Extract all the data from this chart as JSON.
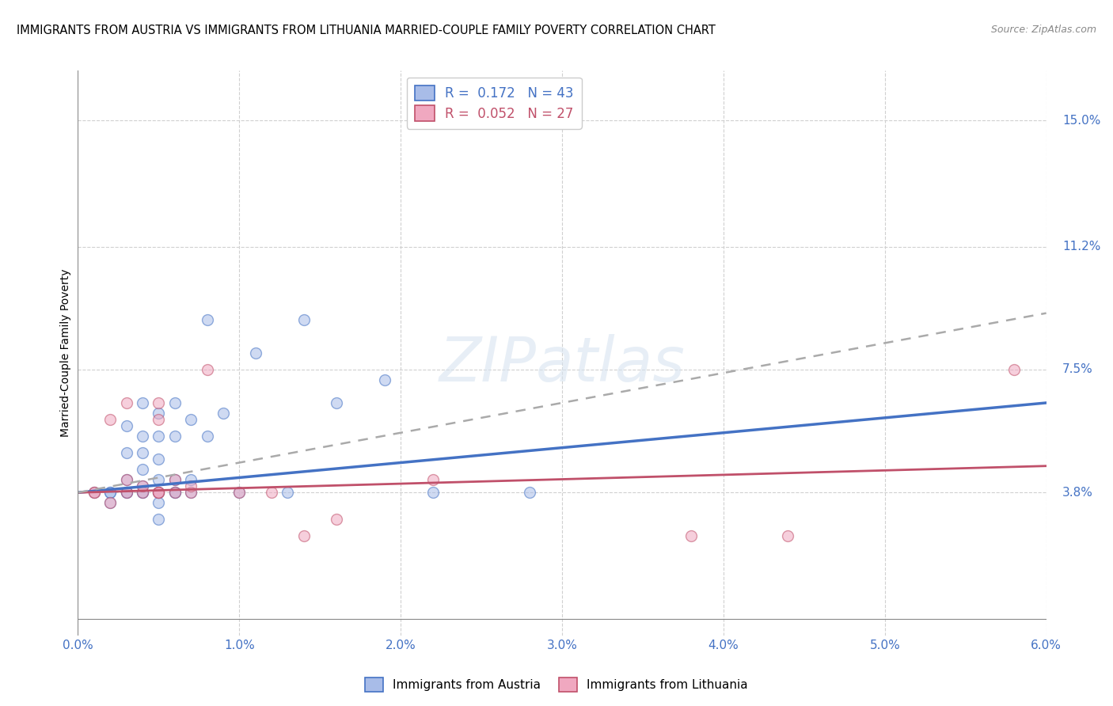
{
  "title": "IMMIGRANTS FROM AUSTRIA VS IMMIGRANTS FROM LITHUANIA MARRIED-COUPLE FAMILY POVERTY CORRELATION CHART",
  "source": "Source: ZipAtlas.com",
  "ylabel": "Married-Couple Family Poverty",
  "xlim": [
    0.0,
    0.06
  ],
  "ylim": [
    -0.005,
    0.165
  ],
  "xtick_labels": [
    "0.0%",
    "1.0%",
    "2.0%",
    "3.0%",
    "4.0%",
    "5.0%",
    "6.0%"
  ],
  "xtick_values": [
    0.0,
    0.01,
    0.02,
    0.03,
    0.04,
    0.05,
    0.06
  ],
  "ytick_labels": [
    "3.8%",
    "7.5%",
    "11.2%",
    "15.0%"
  ],
  "ytick_values": [
    0.038,
    0.075,
    0.112,
    0.15
  ],
  "gridline_color": "#d0d0d0",
  "austria_color": "#a8bce8",
  "austria_edge_color": "#4472c4",
  "lithuania_color": "#f0a8c0",
  "lithuania_edge_color": "#c0506a",
  "legend_austria_label": "R =  0.172   N = 43",
  "legend_lithuania_label": "R =  0.052   N = 27",
  "austria_scatter_x": [
    0.001,
    0.002,
    0.002,
    0.002,
    0.003,
    0.003,
    0.003,
    0.003,
    0.003,
    0.004,
    0.004,
    0.004,
    0.004,
    0.004,
    0.004,
    0.004,
    0.005,
    0.005,
    0.005,
    0.005,
    0.005,
    0.005,
    0.005,
    0.005,
    0.006,
    0.006,
    0.006,
    0.006,
    0.006,
    0.007,
    0.007,
    0.007,
    0.008,
    0.008,
    0.009,
    0.01,
    0.011,
    0.013,
    0.014,
    0.016,
    0.019,
    0.022,
    0.028
  ],
  "austria_scatter_y": [
    0.038,
    0.038,
    0.035,
    0.038,
    0.038,
    0.038,
    0.042,
    0.05,
    0.058,
    0.038,
    0.038,
    0.04,
    0.045,
    0.05,
    0.055,
    0.065,
    0.03,
    0.035,
    0.038,
    0.038,
    0.042,
    0.048,
    0.055,
    0.062,
    0.038,
    0.038,
    0.042,
    0.055,
    0.065,
    0.038,
    0.042,
    0.06,
    0.055,
    0.09,
    0.062,
    0.038,
    0.08,
    0.038,
    0.09,
    0.065,
    0.072,
    0.038,
    0.038
  ],
  "lithuania_scatter_x": [
    0.001,
    0.001,
    0.002,
    0.002,
    0.003,
    0.003,
    0.003,
    0.004,
    0.004,
    0.005,
    0.005,
    0.005,
    0.005,
    0.005,
    0.006,
    0.006,
    0.007,
    0.007,
    0.008,
    0.01,
    0.012,
    0.014,
    0.016,
    0.022,
    0.038,
    0.044,
    0.058
  ],
  "lithuania_scatter_y": [
    0.038,
    0.038,
    0.035,
    0.06,
    0.038,
    0.042,
    0.065,
    0.038,
    0.04,
    0.038,
    0.038,
    0.038,
    0.06,
    0.065,
    0.038,
    0.042,
    0.038,
    0.04,
    0.075,
    0.038,
    0.038,
    0.025,
    0.03,
    0.042,
    0.025,
    0.025,
    0.075
  ],
  "austria_trend": [
    0.038,
    0.065
  ],
  "lithuania_trend": [
    0.038,
    0.046
  ],
  "dashed_trend": [
    0.038,
    0.092
  ],
  "background_color": "#ffffff",
  "title_fontsize": 10.5,
  "axis_label_color": "#4472c4",
  "marker_size": 100,
  "marker_alpha": 0.55,
  "watermark_color": "#d8e4f0",
  "watermark_alpha": 0.6
}
